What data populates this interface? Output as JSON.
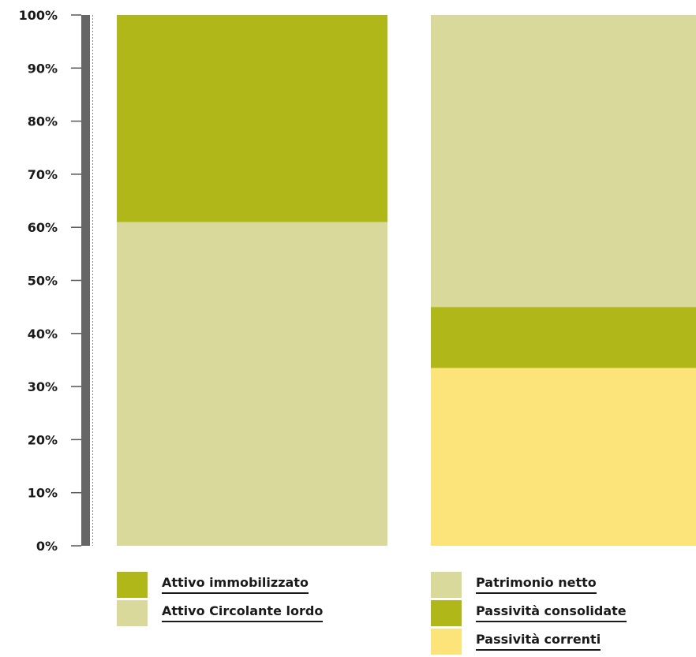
{
  "chart_data": {
    "type": "bar",
    "stacked": true,
    "ylim": [
      0,
      100
    ],
    "yticks": [
      "0%",
      "10%",
      "20%",
      "30%",
      "40%",
      "50%",
      "60%",
      "70%",
      "80%",
      "90%",
      "100%"
    ],
    "bars": [
      {
        "segments": [
          {
            "name": "Attivo Circolante lordo",
            "value": 61,
            "color": "#d8d99b"
          },
          {
            "name": "Attivo immobilizzato",
            "value": 39,
            "color": "#b0b718"
          }
        ]
      },
      {
        "segments": [
          {
            "name": "Passività correnti",
            "value": 33.5,
            "color": "#fde47a"
          },
          {
            "name": "Passività consolidate",
            "value": 11.5,
            "color": "#b0b718"
          },
          {
            "name": "Patrimonio netto",
            "value": 55,
            "color": "#d8d99b"
          }
        ]
      }
    ]
  },
  "legend_left": [
    {
      "label": "Attivo immobilizzato",
      "color": "#b0b718"
    },
    {
      "label": "Attivo Circolante lordo",
      "color": "#d8d99b"
    }
  ],
  "legend_right": [
    {
      "label": "Patrimonio netto",
      "color": "#d8d99b"
    },
    {
      "label": "Passività consolidate",
      "color": "#b0b718"
    },
    {
      "label": "Passività correnti",
      "color": "#fde47a"
    }
  ]
}
